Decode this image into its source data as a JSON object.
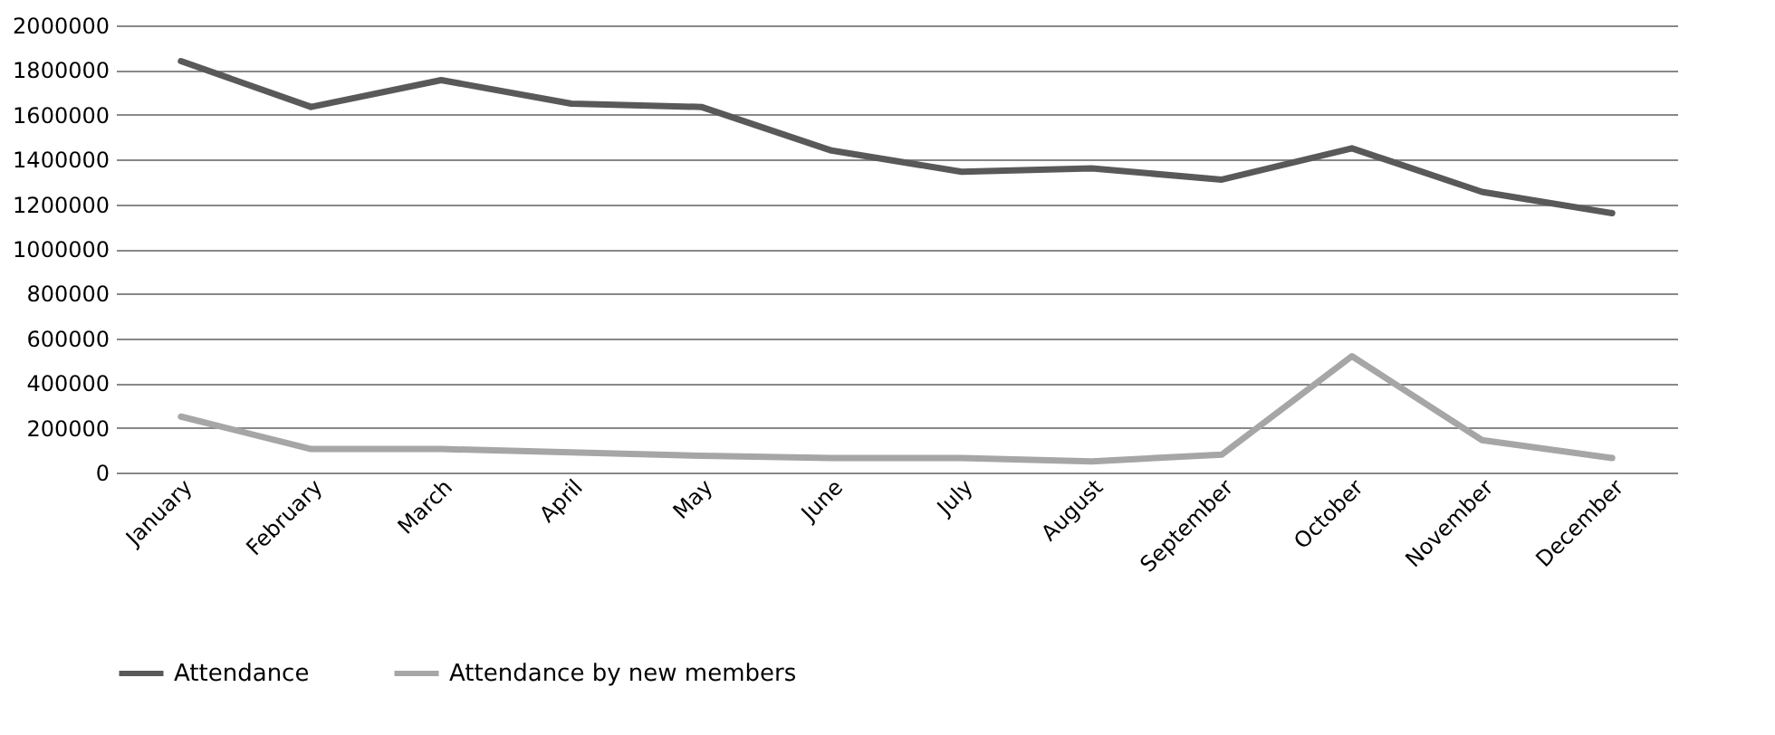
{
  "chart_data": {
    "type": "line",
    "categories": [
      "January",
      "February",
      "March",
      "April",
      "May",
      "June",
      "July",
      "August",
      "September",
      "October",
      "November",
      "December"
    ],
    "series": [
      {
        "name": "Attendance",
        "color": "#595959",
        "values": [
          1840000,
          1635000,
          1755000,
          1650000,
          1635000,
          1440000,
          1345000,
          1360000,
          1310000,
          1450000,
          1255000,
          1160000
        ]
      },
      {
        "name": "Attendance by new members",
        "color": "#a6a6a6",
        "values": [
          250000,
          105000,
          105000,
          90000,
          75000,
          65000,
          65000,
          50000,
          80000,
          520000,
          145000,
          65000
        ]
      }
    ],
    "ylim": [
      0,
      2000000
    ],
    "yticks": [
      0,
      200000,
      400000,
      600000,
      800000,
      1000000,
      1200000,
      1400000,
      1600000,
      1800000,
      2000000
    ],
    "grid": "y",
    "legend": "bottom",
    "line_style": "solid",
    "marker": "none"
  }
}
